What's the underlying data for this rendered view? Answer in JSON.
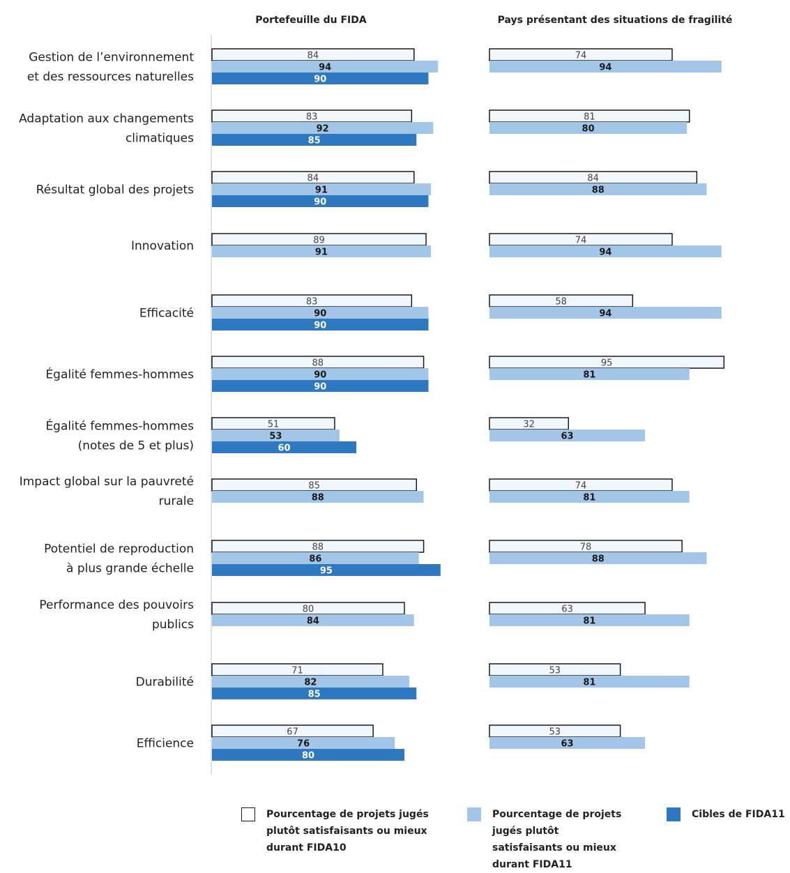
{
  "colors": {
    "fida10_fill": "#f1f6fc",
    "fida10_stroke": "#1a1a1a",
    "fida11": "#a3c6e8",
    "target": "#2e78c0",
    "axis": "#bfbfbf"
  },
  "chart_data": [
    {
      "type": "bar",
      "orientation": "horizontal",
      "title": "Portefeuille du FIDA",
      "categories": [
        [
          "Gestion de l’environnement",
          "et des ressources naturelles"
        ],
        [
          "Adaptation aux changements",
          "climatiques"
        ],
        [
          "Résultat global des projets"
        ],
        [
          "Innovation"
        ],
        [
          "Efficacité"
        ],
        [
          "Égalité femmes-hommes"
        ],
        [
          "Égalité femmes-hommes",
          "(notes de 5 et plus)"
        ],
        [
          "Impact global sur la pauvreté",
          "rurale"
        ],
        [
          "Potentiel de reproduction",
          "à plus grande échelle"
        ],
        [
          "Performance des pouvoirs",
          "publics"
        ],
        [
          "Durabilité"
        ],
        [
          "Efficience"
        ]
      ],
      "series": [
        {
          "name": "Pourcentage de projets jugés plutôt satisfaisants ou mieux durant FIDA10",
          "values": [
            84,
            83,
            84,
            89,
            83,
            88,
            51,
            85,
            88,
            80,
            71,
            67
          ]
        },
        {
          "name": "Pourcentage de projets jugés plutôt satisfaisants ou mieux durant FIDA11",
          "values": [
            94,
            92,
            91,
            91,
            90,
            90,
            53,
            88,
            86,
            84,
            82,
            76
          ]
        },
        {
          "name": "Cibles de FIDA11",
          "values": [
            90,
            85,
            90,
            null,
            90,
            90,
            60,
            null,
            95,
            null,
            85,
            80
          ]
        }
      ]
    },
    {
      "type": "bar",
      "orientation": "horizontal",
      "title": "Pays présentant des situations de fragilité",
      "series": [
        {
          "name": "Pourcentage de projets jugés plutôt satisfaisants ou mieux durant FIDA10",
          "values": [
            74,
            81,
            84,
            74,
            58,
            95,
            32,
            74,
            78,
            63,
            53,
            53
          ]
        },
        {
          "name": "Pourcentage de projets jugés plutôt satisfaisants ou mieux durant FIDA11",
          "values": [
            94,
            80,
            88,
            94,
            94,
            81,
            63,
            81,
            88,
            81,
            81,
            63
          ]
        }
      ]
    }
  ],
  "legend": {
    "items": [
      {
        "label": [
          "Pourcentage de projets jugés",
          "plutôt satisfaisants ou mieux",
          "durant FIDA10"
        ]
      },
      {
        "label": [
          "Pourcentage de projets",
          "jugés plutôt",
          "satisfaisants ou mieux",
          "durant FIDA11"
        ]
      },
      {
        "label": [
          "Cibles de FIDA11"
        ]
      }
    ]
  }
}
